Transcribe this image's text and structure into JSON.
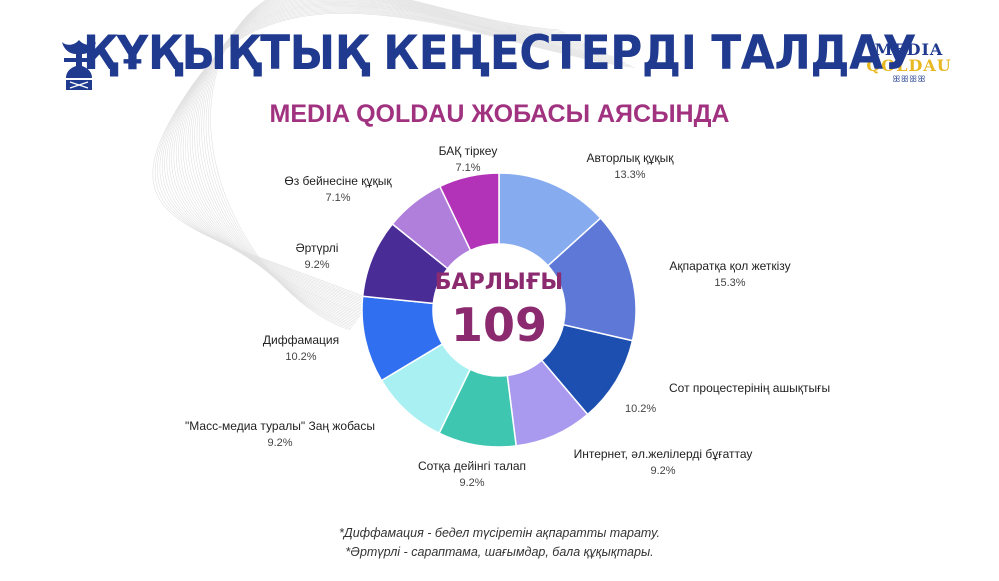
{
  "header": {
    "title": "ҚҰҚЫҚТЫҚ КЕҢЕСТЕРДІ ТАЛДАУ",
    "subtitle": "MEDIA QOLDAU ЖОБАСЫ АЯСЫНДА",
    "logo_right_line1": "MEDIA",
    "logo_right_line2": "QOLDAU",
    "logo_right_ornament": "ꕥꕥꕥꕥ"
  },
  "center": {
    "label": "БАРЛЫҒЫ",
    "value": "109"
  },
  "chart_data": {
    "type": "pie",
    "donut": true,
    "total": 109,
    "categories": [
      "Авторлық құқық",
      "Ақпаратқа қол жеткізу",
      "Сот процестерінің ашықтығы",
      "Интернет, әл.желілерді бұғаттау",
      "Сотқа дейінгі талап",
      "\"Масс-медиа туралы\" Заң жобасы",
      "Диффамация",
      "Әртүрлі",
      "Өз бейнесіне құқық",
      "БАҚ тіркеу"
    ],
    "values": [
      13.3,
      15.3,
      10.2,
      9.2,
      9.2,
      9.2,
      10.2,
      9.2,
      7.1,
      7.1
    ],
    "value_labels": [
      "13.3%",
      "15.3%",
      "10.2%",
      "9.2%",
      "9.2%",
      "9.2%",
      "10.2%",
      "9.2%",
      "7.1%",
      "7.1%"
    ],
    "colors": [
      "#86abef",
      "#5d78d6",
      "#1d4fb0",
      "#a99af0",
      "#3fc6b1",
      "#a8f0f2",
      "#2f6ff0",
      "#4a2c96",
      "#b07fdc",
      "#b333b8"
    ],
    "start_angle_deg": 0,
    "direction": "clockwise"
  },
  "notes": [
    "*Диффамация - бедел түсіретін ақпаратты тарату.",
    "*Әртүрлі - сараптама, шағымдар, бала құқықтары."
  ]
}
